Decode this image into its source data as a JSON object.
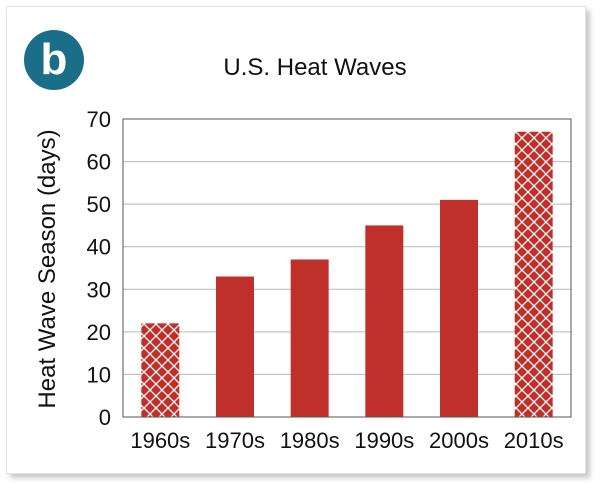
{
  "panel_badge": "b",
  "colors": {
    "badge_fill": "#1b6e87",
    "bar_fill": "#c0302a",
    "grid": "#b8b8b8",
    "axis": "#555555",
    "text": "#111111"
  },
  "chart_data": {
    "type": "bar",
    "title": "U.S. Heat Waves",
    "xlabel": "",
    "ylabel": "Heat Wave Season (days)",
    "categories": [
      "1960s",
      "1970s",
      "1980s",
      "1990s",
      "2000s",
      "2010s"
    ],
    "values": [
      22,
      33,
      37,
      45,
      51,
      67
    ],
    "hatched": [
      true,
      false,
      false,
      false,
      false,
      true
    ],
    "ylim": [
      0,
      70
    ],
    "yticks": [
      0,
      10,
      20,
      30,
      40,
      50,
      60,
      70
    ],
    "grid": true,
    "legend": "none"
  }
}
